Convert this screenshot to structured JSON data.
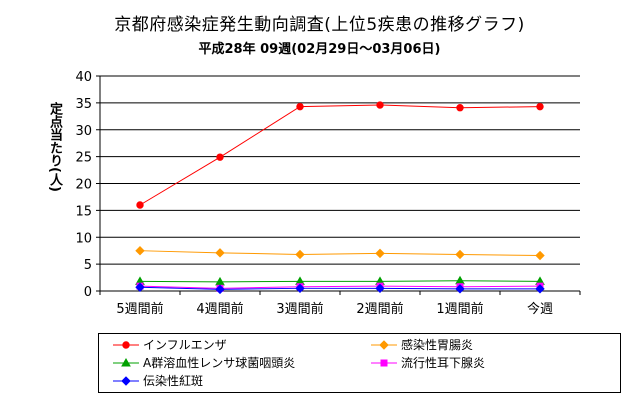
{
  "chart_data": {
    "type": "line",
    "title": "京都府感染症発生動向調査(上位5疾患の推移グラフ)",
    "subtitle": "平成28年 09週(02月29日～03月06日)",
    "xlabel": "",
    "ylabel": "定点当たり(人)",
    "categories": [
      "5週間前",
      "4週間前",
      "3週間前",
      "2週間前",
      "1週間前",
      "今週"
    ],
    "ylim": [
      0,
      40
    ],
    "yticks": [
      0,
      5,
      10,
      15,
      20,
      25,
      30,
      35,
      40
    ],
    "grid": "horizontal",
    "legend_position": "bottom",
    "series": [
      {
        "name": "インフルエンザ",
        "values": [
          16.0,
          24.9,
          34.3,
          34.6,
          34.1,
          34.3
        ],
        "color": "#ff0000",
        "marker": "circle"
      },
      {
        "name": "感染性胃腸炎",
        "values": [
          7.5,
          7.1,
          6.8,
          7.0,
          6.8,
          6.6
        ],
        "color": "#ff9900",
        "marker": "diamond"
      },
      {
        "name": "A群溶血性レンサ球菌咽頭炎",
        "values": [
          1.8,
          1.7,
          1.8,
          1.8,
          1.9,
          1.8
        ],
        "color": "#00a000",
        "marker": "triangle"
      },
      {
        "name": "流行性耳下腺炎",
        "values": [
          0.9,
          0.5,
          0.8,
          0.9,
          0.8,
          0.9
        ],
        "color": "#ff00ff",
        "marker": "square"
      },
      {
        "name": "伝染性紅斑",
        "values": [
          0.7,
          0.3,
          0.5,
          0.5,
          0.4,
          0.4
        ],
        "color": "#0000ff",
        "marker": "diamond"
      }
    ]
  }
}
